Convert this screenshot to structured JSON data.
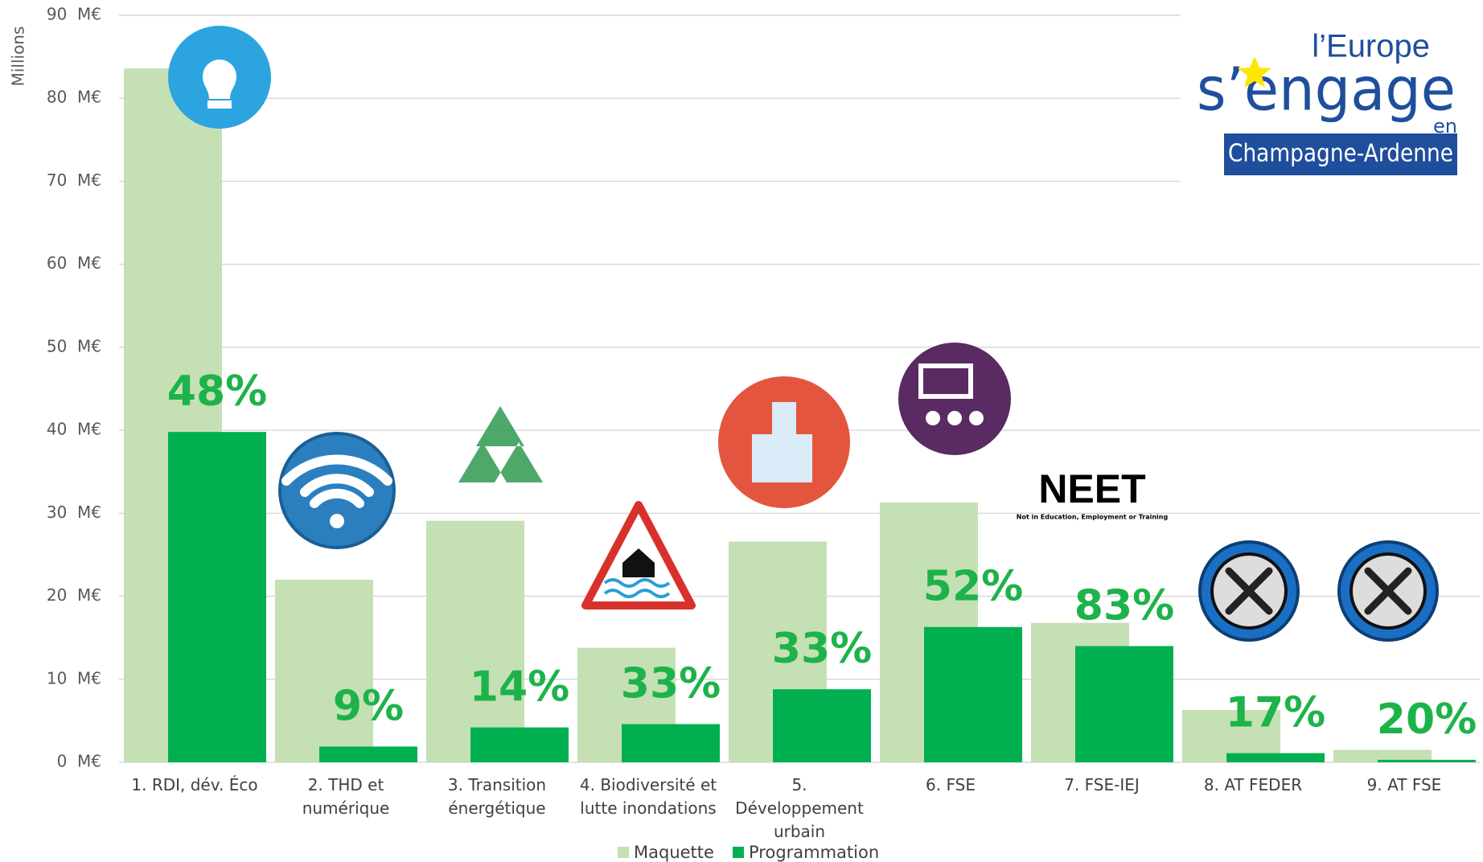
{
  "chart_data": {
    "type": "bar",
    "y_axis_label": "Millions",
    "categories": [
      "1. RDI, dév. Éco",
      "2. THD et numérique",
      "3. Transition énergétique",
      "4. Biodiversité et lutte inondations",
      "5. Développement urbain",
      "6. FSE",
      "7. FSE-IEJ",
      "8. AT FEDER",
      "9. AT FSE"
    ],
    "series": [
      {
        "name": "Maquette",
        "color": "#c5e0b4",
        "values": [
          83.6,
          22,
          29.1,
          13.8,
          26.6,
          31.3,
          16.8,
          6.3,
          1.5
        ]
      },
      {
        "name": "Programmation",
        "color": "#00b050",
        "values": [
          39.8,
          1.9,
          4.2,
          4.6,
          8.8,
          16.3,
          14,
          1.1,
          0.3
        ]
      }
    ],
    "rates": {
      "color": "#1db34a",
      "values": [
        48,
        9,
        14,
        33,
        33,
        52,
        83,
        17,
        20
      ],
      "value_labels": [
        "48%",
        "9%",
        "14%",
        "33%",
        "33%",
        "52%",
        "83%",
        "17%",
        "20%"
      ]
    },
    "ylim": [
      0,
      90
    ],
    "yticks": [
      {
        "value": 0,
        "label": "0  M€"
      },
      {
        "value": 10,
        "label": "10  M€"
      },
      {
        "value": 20,
        "label": "20  M€"
      },
      {
        "value": 30,
        "label": "30  M€"
      },
      {
        "value": 40,
        "label": "40  M€"
      },
      {
        "value": 50,
        "label": "50  M€"
      },
      {
        "value": 60,
        "label": "60  M€"
      },
      {
        "value": 70,
        "label": "70  M€"
      },
      {
        "value": 80,
        "label": "80  M€"
      },
      {
        "value": 90,
        "label": "90  M€"
      }
    ],
    "grid": true,
    "legend": "bottom",
    "annotations": {
      "neet": "NEET",
      "neet_subtitle": "Not in Education, Employment or Training"
    },
    "logo": {
      "line1": "l’Europe",
      "line2": "s’engage",
      "line3": "en",
      "line4": "Champagne-Ardenne"
    }
  }
}
